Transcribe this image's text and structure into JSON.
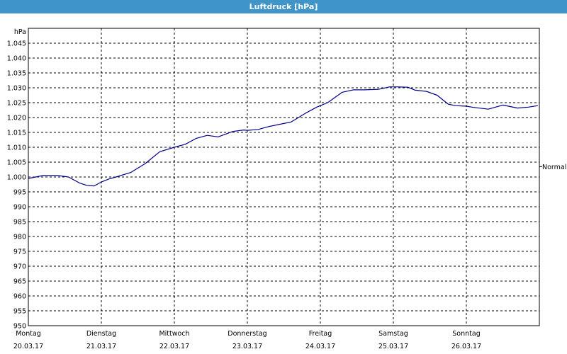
{
  "window": {
    "title": "Luftdruck [hPa]"
  },
  "chart_data": {
    "type": "line",
    "title": "Luftdruck [hPa]",
    "ylabel": "hPa",
    "xlabel": "",
    "ylim": [
      950,
      1050
    ],
    "yticks": [
      950,
      955,
      960,
      965,
      970,
      975,
      980,
      985,
      990,
      995,
      1000,
      1005,
      1010,
      1015,
      1020,
      1025,
      1030,
      1035,
      1040,
      1045
    ],
    "ytick_labels": [
      "950",
      "955",
      "960",
      "965",
      "970",
      "975",
      "980",
      "985",
      "990",
      "995",
      "1.000",
      "1.005",
      "1.010",
      "1.015",
      "1.020",
      "1.025",
      "1.030",
      "1.035",
      "1.040",
      "1.045"
    ],
    "xlim": [
      0,
      7
    ],
    "xticks": [
      {
        "day": "Montag",
        "date": "20.03.17"
      },
      {
        "day": "Dienstag",
        "date": "21.03.17"
      },
      {
        "day": "Mittwoch",
        "date": "22.03.17"
      },
      {
        "day": "Donnerstag",
        "date": "23.03.17"
      },
      {
        "day": "Freitag",
        "date": "24.03.17"
      },
      {
        "day": "Samstag",
        "date": "25.03.17"
      },
      {
        "day": "Sonntag",
        "date": "26.03.17"
      }
    ],
    "reference_line": {
      "label": "Normal",
      "value": 1003.5
    },
    "grid": true,
    "line_color": "#00008b",
    "series": [
      {
        "x": [
          0,
          0.2,
          0.4,
          0.55,
          0.7,
          0.8,
          0.9,
          1.0,
          1.1,
          1.2,
          1.4,
          1.6,
          1.8,
          2.0,
          2.15,
          2.3,
          2.45,
          2.6,
          2.8,
          2.95,
          3.0,
          3.15,
          3.3,
          3.5,
          3.6,
          3.8,
          3.95,
          4.1,
          4.3,
          4.45,
          4.6,
          4.8,
          4.95,
          5.05,
          5.2,
          5.3,
          5.45,
          5.6,
          5.75,
          5.85,
          6.0,
          6.1,
          6.3,
          6.5,
          6.7,
          6.85,
          6.98
        ],
        "y": [
          999.5,
          1000.5,
          1000.5,
          1000.0,
          998.0,
          997.2,
          997.0,
          998.3,
          999.3,
          1000.0,
          1001.5,
          1004.5,
          1008.5,
          1010.0,
          1011.0,
          1013.0,
          1014.0,
          1013.5,
          1015.3,
          1015.8,
          1015.7,
          1016.0,
          1017.0,
          1018.0,
          1018.5,
          1021.5,
          1023.5,
          1025.0,
          1028.5,
          1029.3,
          1029.3,
          1029.5,
          1030.3,
          1030.3,
          1030.2,
          1029.2,
          1028.8,
          1027.5,
          1024.5,
          1024.0,
          1023.8,
          1023.4,
          1022.8,
          1024.2,
          1023.2,
          1023.5,
          1024.0
        ]
      }
    ]
  }
}
